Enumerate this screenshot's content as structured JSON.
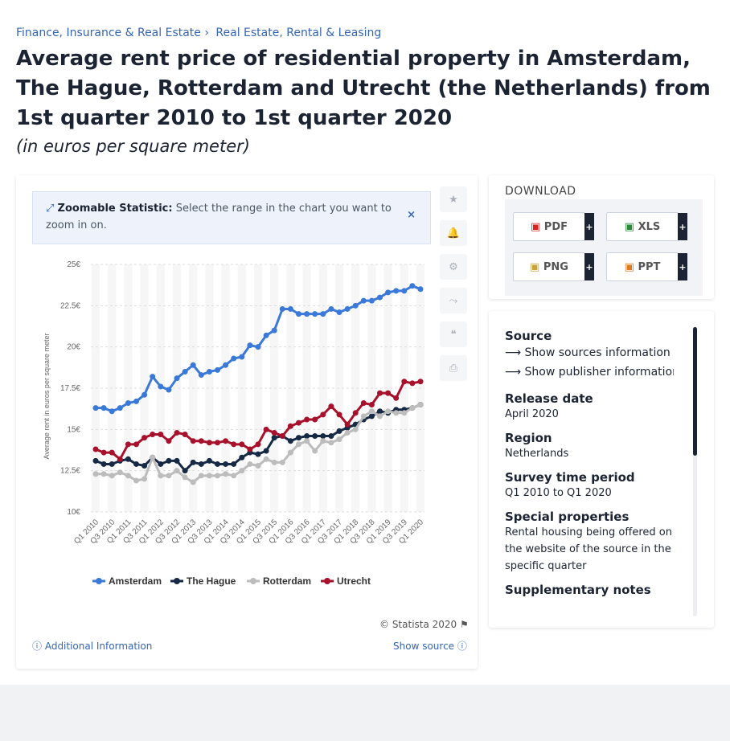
{
  "breadcrumb": [
    "Finance, Insurance & Real Estate",
    "Real Estate, Rental & Leasing"
  ],
  "title": "Average rent price of residential property in Amsterdam, The Hague, Rotterdam and Utrecht (the Netherlands) from 1st quarter 2010 to 1st quarter 2020",
  "subtitle": "(in euros per square meter)",
  "zoom_note": {
    "label": "Zoomable Statistic:",
    "text": "Select the range in the chart you want to zoom in on."
  },
  "credit": "© Statista 2020",
  "additional_info": "Additional Information",
  "show_source": "Show source",
  "download": {
    "title": "DOWNLOAD",
    "buttons": [
      "PDF",
      "XLS",
      "PNG",
      "PPT"
    ]
  },
  "details": [
    {
      "label": "Source",
      "links": [
        "Show sources information",
        "Show publisher information"
      ]
    },
    {
      "label": "Release date",
      "text": "April 2020"
    },
    {
      "label": "Region",
      "text": "Netherlands"
    },
    {
      "label": "Survey time period",
      "text": "Q1 2010 to Q1 2020"
    },
    {
      "label": "Special properties",
      "text": "Rental housing being offered on the website of the source in the specific quarter"
    },
    {
      "label": "Supplementary notes"
    }
  ],
  "chart_data": {
    "type": "line",
    "ylabel": "Average rent in euros per square meter",
    "categories": [
      "Q1 2010",
      null,
      "Q3 2010",
      null,
      "Q1 2011",
      null,
      "Q3 2011",
      null,
      "Q1 2012",
      null,
      "Q3 2012",
      null,
      "Q1 2013",
      null,
      "Q3 2013",
      null,
      "Q1 2014",
      null,
      "Q3 2014",
      null,
      "Q1 2015",
      null,
      "Q3 2015",
      null,
      "Q1 2016",
      null,
      "Q3 2016",
      null,
      "Q1 2017",
      null,
      "Q3 2017",
      null,
      "Q1 2018",
      null,
      "Q3 2018",
      null,
      "Q1 2019",
      null,
      "Q3 2019",
      null,
      "Q1 2020"
    ],
    "ylim": [
      10,
      25
    ],
    "yticks": [
      {
        "value": 10,
        "label": "10€"
      },
      {
        "value": 12.5,
        "label": "12.5€"
      },
      {
        "value": 15,
        "label": "15€"
      },
      {
        "value": 17.5,
        "label": "17.5€"
      },
      {
        "value": 20,
        "label": "20€"
      },
      {
        "value": 22.5,
        "label": "22.5€"
      },
      {
        "value": 25,
        "label": "25€"
      }
    ],
    "grid": true,
    "series": [
      {
        "name": "Amsterdam",
        "color": "#3b79d8",
        "values": [
          16.3,
          16.3,
          16.1,
          16.3,
          16.6,
          16.7,
          17.1,
          18.2,
          17.6,
          17.4,
          18.1,
          18.5,
          18.9,
          18.3,
          18.5,
          18.6,
          18.9,
          19.3,
          19.4,
          20.1,
          20.0,
          20.7,
          21.0,
          22.3,
          22.3,
          22.0,
          22.0,
          22.0,
          22.0,
          22.3,
          22.1,
          22.3,
          22.5,
          22.8,
          22.8,
          23.0,
          23.3,
          23.4,
          23.4,
          23.7,
          23.5
        ]
      },
      {
        "name": "The Hague",
        "color": "#172a45",
        "values": [
          13.1,
          12.9,
          12.9,
          13.1,
          13.2,
          12.9,
          12.8,
          13.3,
          12.9,
          13.1,
          13.1,
          12.5,
          13.0,
          12.9,
          13.1,
          12.9,
          12.9,
          12.9,
          13.3,
          13.6,
          13.5,
          13.7,
          14.5,
          14.6,
          14.3,
          14.5,
          14.6,
          14.6,
          14.6,
          14.6,
          14.9,
          15.1,
          15.3,
          15.6,
          15.8,
          16.1,
          16.0,
          16.2,
          16.2,
          16.3,
          16.5
        ]
      },
      {
        "name": "Rotterdam",
        "color": "#bcbcbc",
        "values": [
          12.3,
          12.3,
          12.2,
          12.4,
          12.2,
          11.9,
          12.0,
          13.3,
          12.2,
          12.2,
          12.5,
          12.1,
          11.8,
          12.2,
          12.2,
          12.2,
          12.3,
          12.2,
          12.5,
          12.9,
          12.8,
          13.2,
          13.0,
          13.0,
          13.6,
          14.1,
          14.3,
          13.7,
          14.3,
          14.2,
          14.4,
          14.8,
          15.0,
          15.8,
          16.1,
          15.8,
          16.1,
          16.0,
          16.0,
          16.3,
          16.5
        ]
      },
      {
        "name": "Utrecht",
        "color": "#a8112b",
        "values": [
          13.8,
          13.6,
          13.6,
          13.2,
          14.1,
          14.1,
          14.5,
          14.7,
          14.7,
          14.3,
          14.8,
          14.7,
          14.3,
          14.3,
          14.2,
          14.2,
          14.3,
          14.1,
          14.1,
          13.8,
          14.1,
          15.0,
          14.8,
          14.6,
          15.2,
          15.4,
          15.6,
          15.6,
          15.9,
          16.4,
          15.9,
          15.3,
          16.0,
          16.6,
          16.5,
          17.2,
          17.2,
          16.9,
          17.9,
          17.8,
          17.9
        ]
      }
    ]
  }
}
